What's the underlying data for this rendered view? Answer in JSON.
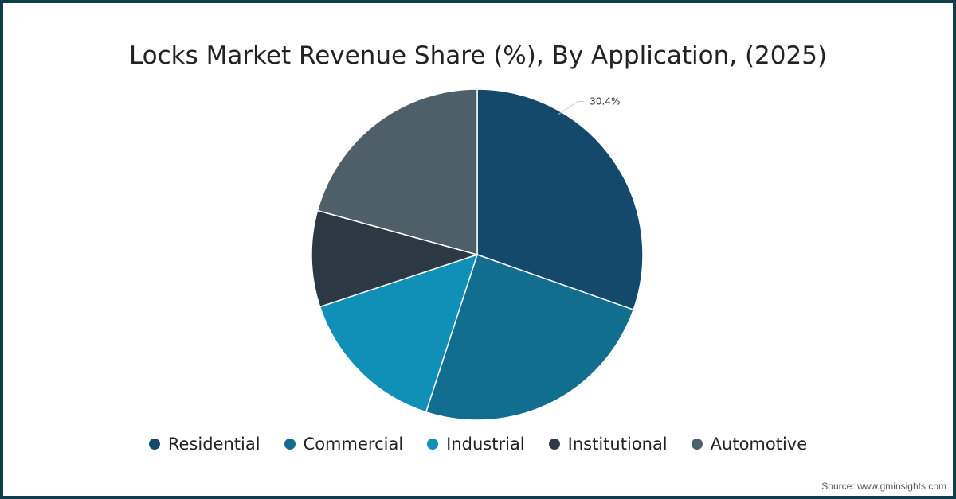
{
  "chart_data": {
    "type": "pie",
    "title": "Locks Market Revenue Share (%), By Application, (2025)",
    "categories": [
      "Residential",
      "Commercial",
      "Industrial",
      "Institutional",
      "Automotive"
    ],
    "values": [
      30.4,
      24.6,
      14.9,
      9.4,
      20.7
    ],
    "colors": [
      "#15496b",
      "#126e8e",
      "#1190b7",
      "#2c3944",
      "#4f5f69"
    ],
    "data_labels": [
      {
        "category": "Residential",
        "text": "30.4%"
      }
    ],
    "legend_position": "bottom"
  },
  "source": "Source: www.gminsights.com"
}
